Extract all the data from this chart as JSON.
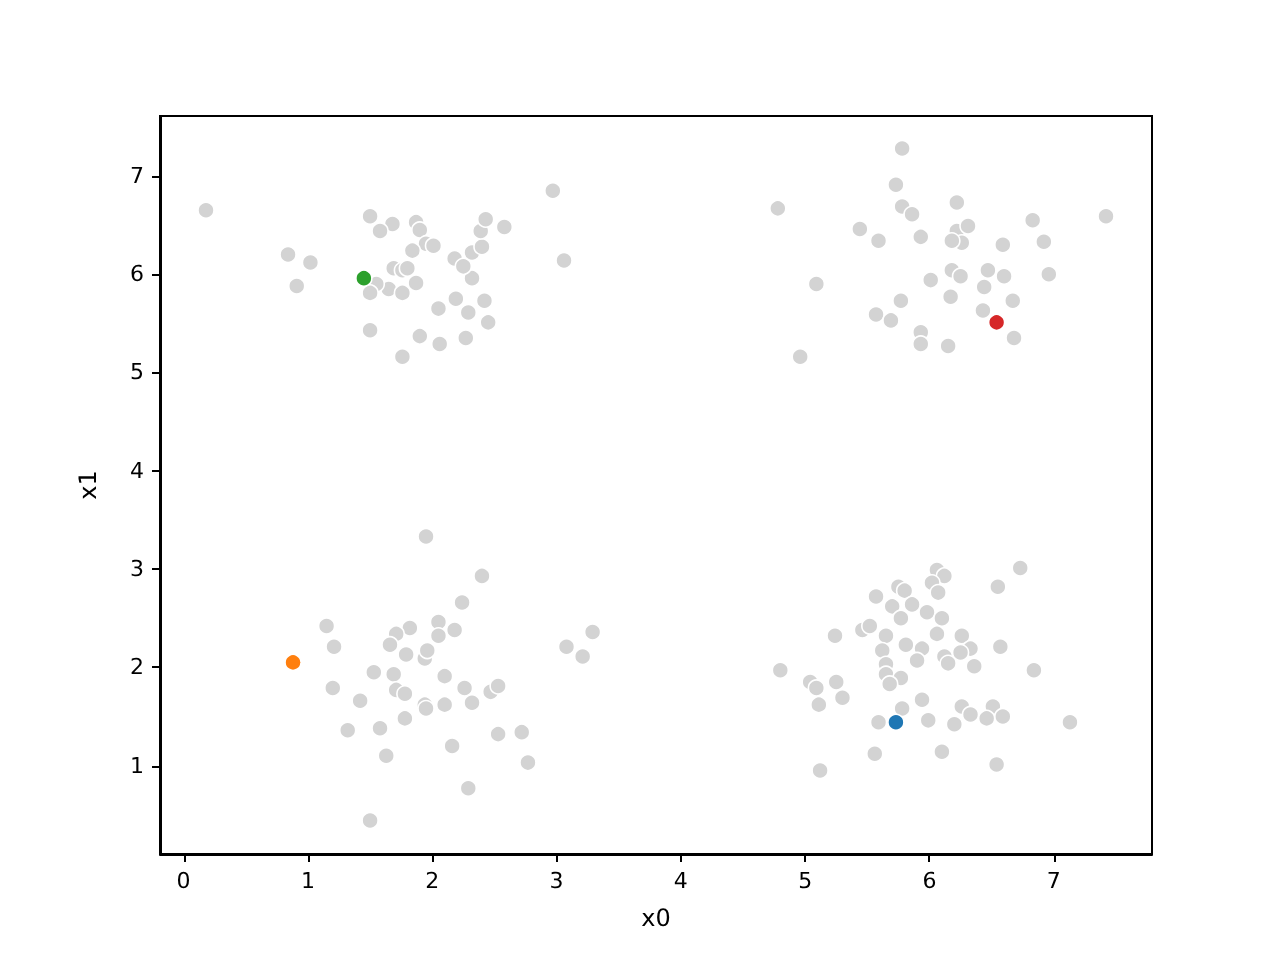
{
  "chart_data": {
    "type": "scatter",
    "xlabel": "x0",
    "ylabel": "x1",
    "marker": "circle",
    "xlim": [
      -0.19,
      7.79
    ],
    "ylim": [
      0.1,
      7.61
    ],
    "xticks": [
      0,
      1,
      2,
      3,
      4,
      5,
      6,
      7
    ],
    "yticks": [
      1,
      2,
      3,
      4,
      5,
      6,
      7
    ],
    "series": [
      {
        "color": "#d3d3d3",
        "x": [
          0.18,
          0.84,
          1.02,
          0.91,
          1.5,
          1.68,
          1.58,
          1.87,
          1.9,
          1.95,
          2.01,
          1.84,
          1.69,
          1.76,
          1.8,
          1.87,
          1.65,
          1.76,
          1.55,
          1.5,
          1.5,
          1.76,
          1.9,
          2.06,
          2.05,
          2.19,
          2.29,
          2.27,
          2.42,
          2.45,
          2.32,
          2.18,
          2.25,
          2.32,
          2.4,
          2.39,
          2.43,
          2.58,
          2.97,
          3.06,
          5.78,
          5.73,
          4.78,
          5.78,
          5.86,
          6.22,
          5.44,
          5.59,
          5.93,
          6.22,
          6.31,
          6.26,
          6.18,
          6.59,
          6.83,
          6.92,
          7.42,
          5.09,
          6.01,
          6.18,
          6.25,
          6.47,
          6.6,
          6.96,
          6.44,
          6.17,
          6.67,
          5.77,
          5.57,
          5.69,
          6.43,
          6.68,
          5.93,
          5.93,
          6.15,
          4.96,
          1.95,
          2.4,
          2.24,
          1.15,
          1.21,
          1.82,
          1.71,
          1.66,
          2.05,
          2.05,
          2.18,
          1.79,
          1.94,
          1.96,
          1.53,
          1.69,
          2.1,
          1.2,
          1.42,
          1.71,
          1.78,
          1.94,
          1.95,
          2.1,
          2.26,
          2.32,
          2.47,
          2.53,
          1.32,
          1.58,
          1.78,
          1.63,
          2.16,
          2.53,
          2.72,
          2.77,
          2.29,
          1.5,
          3.08,
          3.21,
          3.29,
          6.73,
          6.55,
          6.06,
          6.12,
          6.02,
          6.07,
          5.57,
          5.75,
          5.8,
          5.7,
          5.86,
          5.98,
          5.77,
          6.1,
          5.46,
          5.52,
          5.24,
          5.65,
          6.06,
          6.26,
          5.81,
          5.94,
          5.62,
          6.33,
          6.25,
          6.57,
          6.12,
          5.9,
          6.15,
          6.36,
          5.65,
          4.8,
          6.84,
          5.65,
          5.77,
          5.68,
          5.04,
          5.09,
          5.25,
          5.3,
          5.11,
          5.94,
          5.78,
          6.26,
          6.51,
          6.33,
          6.46,
          6.59,
          5.99,
          6.2,
          5.59,
          7.13,
          5.56,
          6.1,
          6.54,
          5.12
        ],
        "values": [
          6.65,
          6.2,
          6.12,
          5.88,
          6.59,
          6.51,
          6.44,
          6.53,
          6.45,
          6.31,
          6.29,
          6.24,
          6.06,
          6.04,
          6.06,
          5.91,
          5.85,
          5.81,
          5.9,
          5.81,
          5.43,
          5.16,
          5.37,
          5.29,
          5.65,
          5.75,
          5.61,
          5.35,
          5.73,
          5.51,
          5.96,
          6.16,
          6.08,
          6.22,
          6.28,
          6.44,
          6.56,
          6.48,
          6.85,
          6.14,
          7.28,
          6.91,
          6.67,
          6.69,
          6.61,
          6.73,
          6.46,
          6.34,
          6.38,
          6.44,
          6.49,
          6.32,
          6.34,
          6.3,
          6.55,
          6.33,
          6.59,
          5.9,
          5.94,
          6.04,
          5.98,
          6.04,
          5.98,
          6.0,
          5.87,
          5.77,
          5.73,
          5.73,
          5.59,
          5.53,
          5.63,
          5.35,
          5.41,
          5.29,
          5.27,
          5.16,
          3.33,
          2.93,
          2.66,
          2.42,
          2.21,
          2.4,
          2.34,
          2.23,
          2.46,
          2.32,
          2.38,
          2.13,
          2.09,
          2.17,
          1.95,
          1.93,
          1.91,
          1.79,
          1.66,
          1.77,
          1.73,
          1.62,
          1.58,
          1.62,
          1.79,
          1.64,
          1.75,
          1.81,
          1.36,
          1.38,
          1.48,
          1.1,
          1.2,
          1.32,
          1.34,
          1.03,
          0.77,
          0.44,
          2.21,
          2.11,
          2.36,
          3.01,
          2.82,
          2.99,
          2.93,
          2.86,
          2.76,
          2.72,
          2.82,
          2.78,
          2.62,
          2.64,
          2.56,
          2.5,
          2.5,
          2.38,
          2.42,
          2.32,
          2.32,
          2.34,
          2.32,
          2.23,
          2.19,
          2.17,
          2.19,
          2.15,
          2.21,
          2.11,
          2.07,
          2.04,
          2.01,
          2.03,
          1.97,
          1.97,
          1.93,
          1.89,
          1.83,
          1.85,
          1.79,
          1.85,
          1.69,
          1.62,
          1.67,
          1.58,
          1.6,
          1.6,
          1.52,
          1.48,
          1.5,
          1.46,
          1.42,
          1.44,
          1.44,
          1.12,
          1.14,
          1.01,
          0.95
        ]
      },
      {
        "color": "#1f77b4",
        "x": [
          5.73
        ],
        "values": [
          1.44
        ]
      },
      {
        "color": "#ff7f0e",
        "x": [
          0.88
        ],
        "values": [
          2.05
        ]
      },
      {
        "color": "#2ca02c",
        "x": [
          1.45
        ],
        "values": [
          5.96
        ]
      },
      {
        "color": "#d62728",
        "x": [
          6.54
        ],
        "values": [
          5.51
        ]
      }
    ]
  }
}
